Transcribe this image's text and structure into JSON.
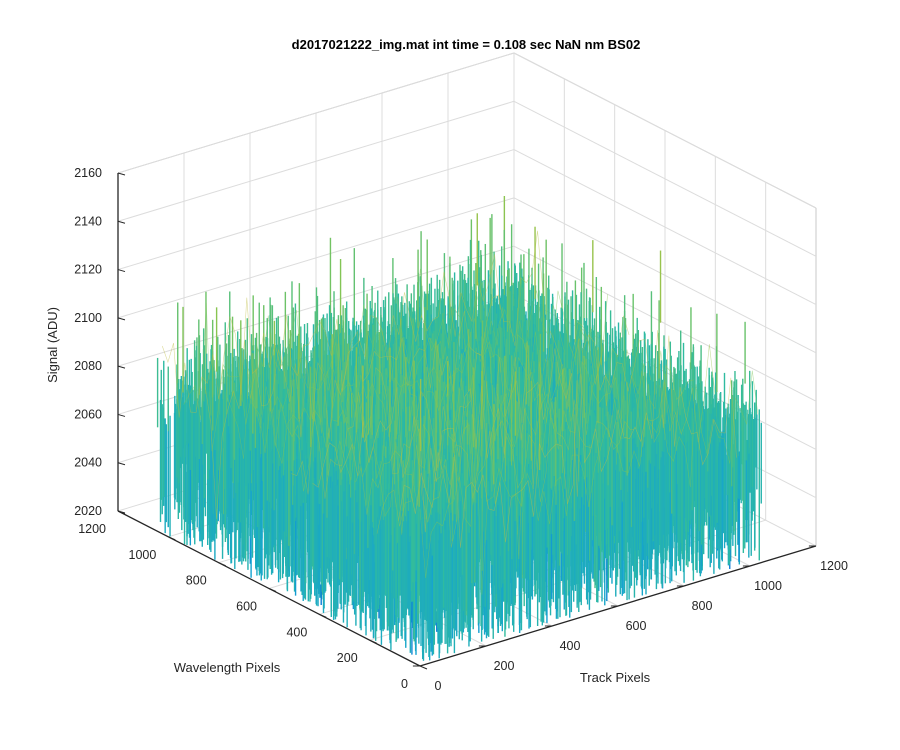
{
  "figure": {
    "background": "#ffffff"
  },
  "chart_data": {
    "type": "surface",
    "title": "d2017021222_img.mat int time = 0.108 sec  NaN nm BS02",
    "xlabel": "Track Pixels",
    "ylabel": "Wavelength Pixels",
    "zlabel": "Signal (ADU)",
    "xlim": [
      0,
      1200
    ],
    "ylim": [
      0,
      1200
    ],
    "zlim": [
      2020,
      2160
    ],
    "x_ticks": [
      "0",
      "200",
      "400",
      "600",
      "800",
      "1000",
      "1200"
    ],
    "y_ticks": [
      "0",
      "200",
      "400",
      "600",
      "800",
      "1000",
      "1200"
    ],
    "z_ticks": [
      "2020",
      "2040",
      "2060",
      "2080",
      "2100",
      "2120",
      "2140",
      "2160"
    ],
    "grid": true,
    "colormap": "parula",
    "data_extent": {
      "x": [
        0,
        1024
      ],
      "y": [
        0,
        1024
      ]
    },
    "signal": {
      "mean": 2080,
      "min": 2030,
      "max": 2150
    },
    "colors": {
      "low": "#0d72d6",
      "mid_low": "#14a3d0",
      "mid": "#2fbb9f",
      "mid_high": "#86c552",
      "high": "#d8bb3c",
      "grid": "#dcdcdc",
      "axis": "#262626"
    }
  }
}
